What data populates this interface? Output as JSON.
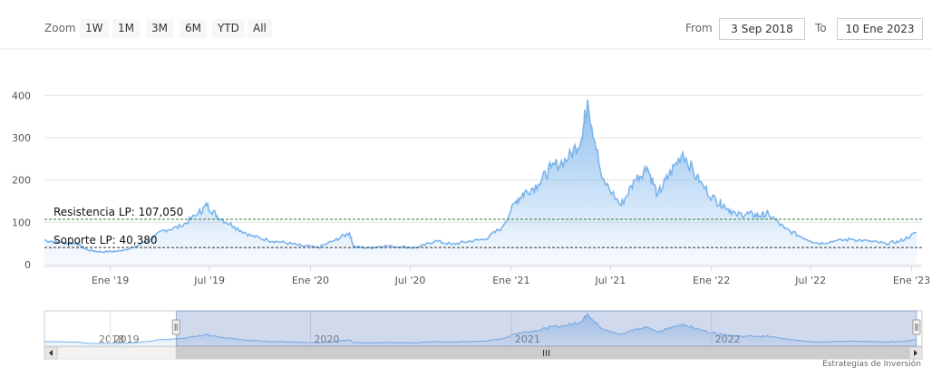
{
  "toolbar": {
    "zoom_label": "Zoom",
    "buttons": [
      "1W",
      "1M",
      "3M",
      "6M",
      "YTD",
      "All"
    ],
    "from_label": "From",
    "from_value": "3 Sep 2018",
    "to_label": "To",
    "to_value": "10 Ene 2023"
  },
  "credit": "Estrategias de Inversión",
  "chart_data": {
    "type": "area",
    "title": "",
    "xlabel": "",
    "ylabel": "",
    "ylim": [
      0,
      420
    ],
    "y_ticks": [
      "0",
      "100",
      "200",
      "300",
      "400"
    ],
    "x_ticks": [
      "Ene '19",
      "Jul '19",
      "Ene '20",
      "Jul '20",
      "Ene '21",
      "Jul '21",
      "Ene '22",
      "Jul '22",
      "Ene '23"
    ],
    "grid": true,
    "line_color": "#7cb5ec",
    "series": [
      {
        "x": [
          "2018-09-03",
          "2018-10-01",
          "2018-11-01",
          "2018-11-20",
          "2018-12-15",
          "2019-01-15",
          "2019-02-15",
          "2019-03-15",
          "2019-04-10",
          "2019-05-10",
          "2019-06-10",
          "2019-06-26",
          "2019-07-15",
          "2019-08-15",
          "2019-09-15",
          "2019-10-15",
          "2019-11-15",
          "2019-12-15",
          "2020-01-15",
          "2020-02-15",
          "2020-03-12",
          "2020-03-20",
          "2020-04-15",
          "2020-05-15",
          "2020-06-15",
          "2020-07-15",
          "2020-08-15",
          "2020-09-15",
          "2020-10-15",
          "2020-11-15",
          "2020-12-15",
          "2021-01-10",
          "2021-01-25",
          "2021-02-20",
          "2021-03-15",
          "2021-04-15",
          "2021-05-10",
          "2021-05-20",
          "2021-06-15",
          "2021-07-20",
          "2021-08-15",
          "2021-09-06",
          "2021-09-25",
          "2021-10-15",
          "2021-11-10",
          "2021-12-10",
          "2022-01-10",
          "2022-01-25",
          "2022-02-15",
          "2022-03-10",
          "2022-03-30",
          "2022-04-15",
          "2022-05-15",
          "2022-06-15",
          "2022-07-15",
          "2022-08-15",
          "2022-09-15",
          "2022-10-15",
          "2022-11-15",
          "2022-12-10",
          "2023-01-10"
        ],
        "y": [
          58,
          52,
          50,
          35,
          30,
          32,
          42,
          60,
          82,
          90,
          120,
          140,
          115,
          90,
          68,
          58,
          52,
          45,
          40,
          58,
          75,
          42,
          40,
          44,
          42,
          40,
          56,
          48,
          55,
          60,
          88,
          150,
          170,
          190,
          230,
          250,
          300,
          390,
          205,
          140,
          200,
          230,
          165,
          210,
          265,
          195,
          150,
          140,
          118,
          120,
          115,
          120,
          85,
          65,
          50,
          56,
          60,
          55,
          50,
          55,
          75
        ]
      }
    ],
    "annotations": [
      {
        "label": "Resistencia LP: 107,050",
        "value": 107.05,
        "color": "#2e7d32"
      },
      {
        "label": "Soporte LP: 40,380",
        "value": 40.38,
        "color": "#333333"
      }
    ],
    "navigator": {
      "year_labels": [
        "2018",
        "2019",
        "2020",
        "2021",
        "2022"
      ],
      "selection": [
        "2019-05-01",
        "2023-01-10"
      ]
    }
  }
}
